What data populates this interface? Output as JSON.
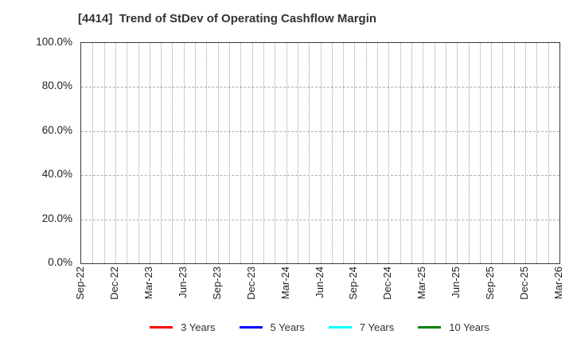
{
  "chart_data": {
    "type": "line",
    "title": "[4414]  Trend of StDev of Operating Cashflow Margin",
    "xlabel": "",
    "ylabel": "",
    "ylim": [
      0,
      100
    ],
    "grid": "on",
    "legend_position": "bottom",
    "y_tick_values": [
      0,
      20,
      40,
      60,
      80,
      100
    ],
    "y_tick_labels": [
      "0.0%",
      "20.0%",
      "40.0%",
      "60.0%",
      "80.0%",
      "100.0%"
    ],
    "x_tick_labels": [
      "Sep-22",
      "Dec-22",
      "Mar-23",
      "Jun-23",
      "Sep-23",
      "Dec-23",
      "Mar-24",
      "Jun-24",
      "Sep-24",
      "Dec-24",
      "Mar-25",
      "Jun-25",
      "Sep-25",
      "Dec-25",
      "Mar-26"
    ],
    "x_total_month_intervals": 42,
    "x_tick_every_months": 3,
    "series": [
      {
        "name": "3 Years",
        "color": "#ff0000",
        "x": [],
        "y": []
      },
      {
        "name": "5 Years",
        "color": "#0000ff",
        "x": [],
        "y": []
      },
      {
        "name": "7 Years",
        "color": "#00ffff",
        "x": [],
        "y": []
      },
      {
        "name": "10 Years",
        "color": "#008000",
        "x": [],
        "y": []
      }
    ]
  },
  "colors": {
    "frame": "#3a3a3a",
    "grid_vertical": "#9e9e9e",
    "grid_horizontal": "#b0b0b0",
    "text": "#222222",
    "title_text": "#333333",
    "background": "#ffffff"
  }
}
